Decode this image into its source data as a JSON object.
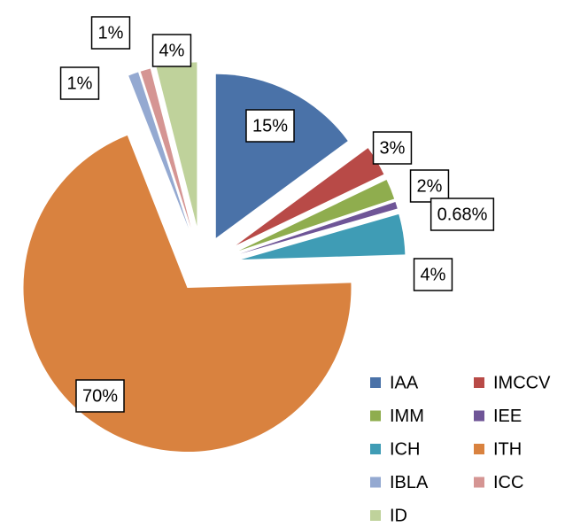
{
  "chart_data": {
    "type": "pie",
    "categories": [
      "IAA",
      "IMCCV",
      "IMM",
      "IEE",
      "ICH",
      "ITH",
      "IBLA",
      "ICC",
      "ID"
    ],
    "values": [
      15,
      3,
      2,
      0.68,
      4,
      70,
      1,
      1,
      4
    ],
    "value_labels": [
      "15%",
      "3%",
      "2%",
      "0.68%",
      "4%",
      "70%",
      "1%",
      "1%",
      "4%"
    ],
    "colors": [
      "#4a72a8",
      "#b84a47",
      "#8fad4e",
      "#6f5597",
      "#3f9cb5",
      "#d9823f",
      "#94a9d1",
      "#d59593",
      "#bfd29b"
    ],
    "legend": "bottom-right"
  }
}
